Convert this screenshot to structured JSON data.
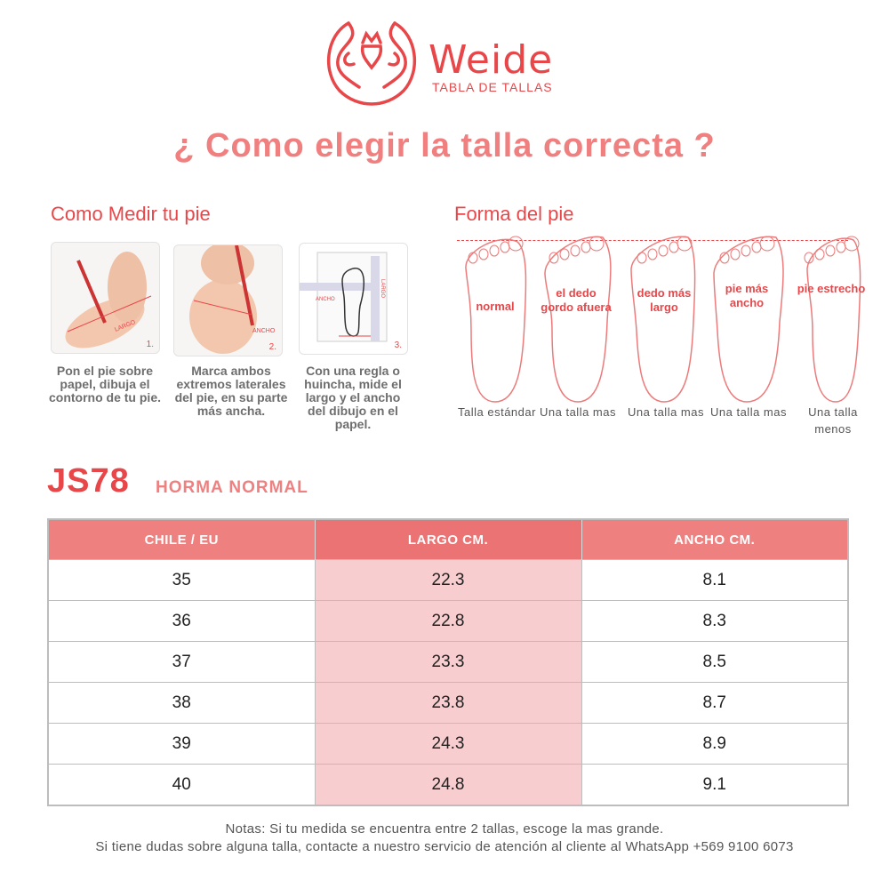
{
  "brand": {
    "name": "Weide",
    "subtitle": "TABLA DE TALLAS",
    "color": "#e8474a"
  },
  "title": "¿ Como elegir la talla correcta ?",
  "measure": {
    "heading": "Como Medir tu pie",
    "steps": [
      {
        "num": "1.",
        "img_label": "LARGO",
        "text": "Pon el pie sobre papel, dibuja el contorno de tu pie."
      },
      {
        "num": "2.",
        "img_label": "ANCHO",
        "text": "Marca ambos extremos laterales del pie, en su parte más ancha."
      },
      {
        "num": "3.",
        "img_label": "ANCHO",
        "img_label2": "LARGO",
        "text": "Con una regla o huincha, mide el largo y el ancho del dibujo en el papel."
      }
    ]
  },
  "shapes": {
    "heading": "Forma del pie",
    "feet": [
      {
        "label": "normal",
        "caption": "Talla estándar"
      },
      {
        "label": "el dedo gordo afuera",
        "caption": "Una talla mas"
      },
      {
        "label": "dedo más largo",
        "caption": "Una talla mas"
      },
      {
        "label": "pie más ancho",
        "caption": "Una talla mas"
      },
      {
        "label": "pie estrecho",
        "caption": "Una talla menos"
      }
    ]
  },
  "model": {
    "code": "JS78",
    "horma": "HORMA NORMAL"
  },
  "table": {
    "headers": [
      "CHILE / EU",
      "LARGO CM.",
      "ANCHO CM."
    ],
    "rows": [
      [
        "35",
        "22.3",
        "8.1"
      ],
      [
        "36",
        "22.8",
        "8.3"
      ],
      [
        "37",
        "23.3",
        "8.5"
      ],
      [
        "38",
        "23.8",
        "8.7"
      ],
      [
        "39",
        "24.3",
        "8.9"
      ],
      [
        "40",
        "24.8",
        "9.1"
      ]
    ],
    "header_color": "#ef8080",
    "highlight_color": "#f8cdcf"
  },
  "notes": [
    "Notas: Si tu medida se encuentra entre 2 tallas, escoge la mas grande.",
    "Si tiene dudas sobre alguna talla, contacte a nuestro servicio de atención al cliente al WhatsApp +569 9100 6073"
  ]
}
